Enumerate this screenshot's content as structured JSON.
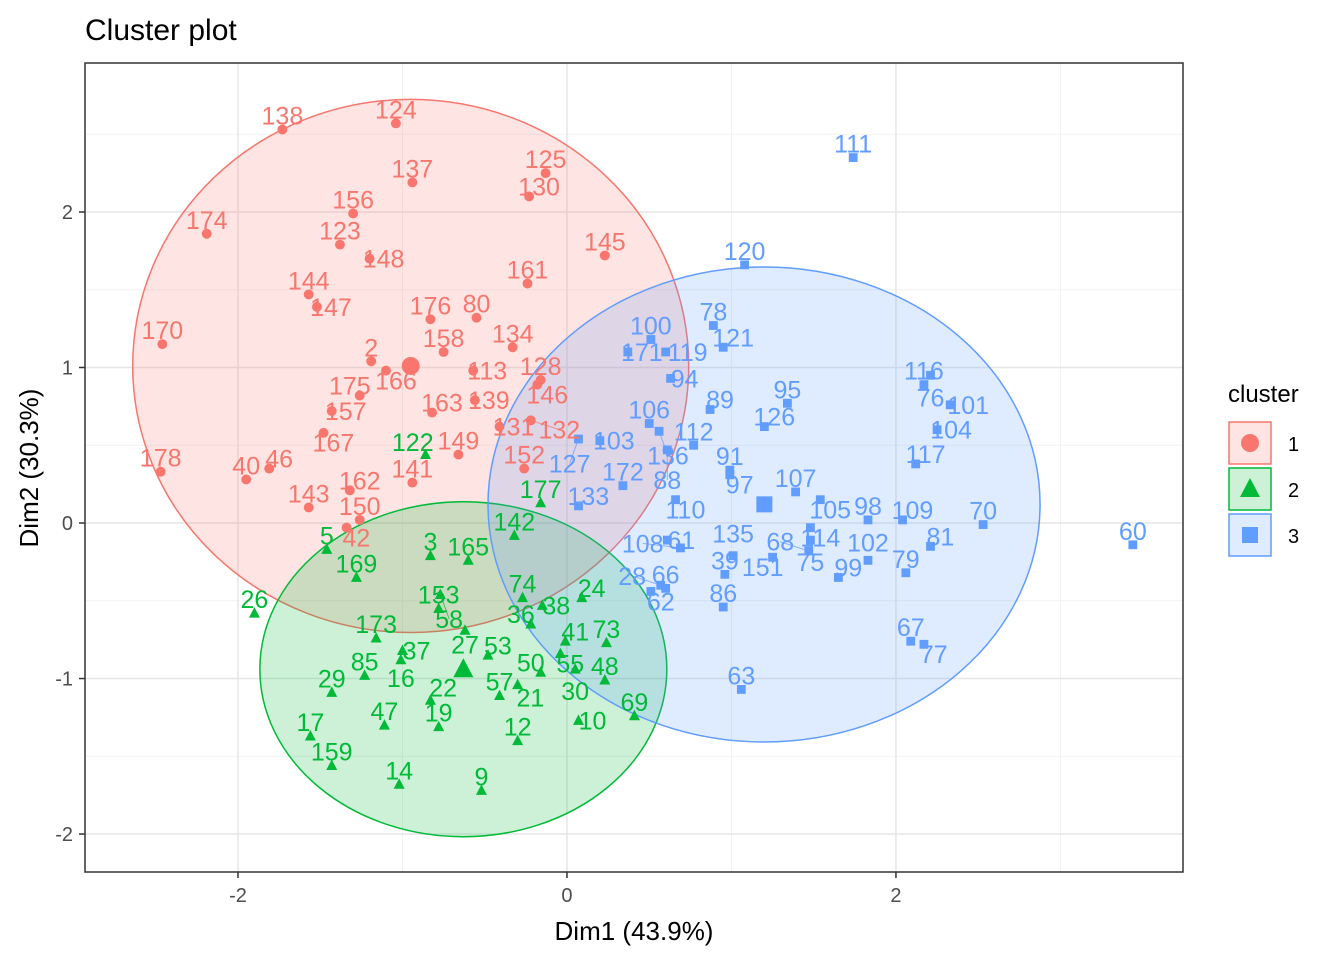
{
  "chart_data": {
    "type": "scatter",
    "title": "Cluster plot",
    "xlabel": "Dim1 (43.9%)",
    "ylabel": "Dim2 (30.3%)",
    "xlim": [
      -2.93,
      3.745
    ],
    "ylim": [
      -2.244,
      2.958
    ],
    "xticks": [
      -2,
      0,
      2
    ],
    "yticks": [
      -2,
      -1,
      0,
      1,
      2
    ],
    "grid": true,
    "legend": {
      "title": "cluster",
      "position": "right",
      "entries": [
        "1",
        "2",
        "3"
      ]
    },
    "colors": {
      "1": "#F8766D",
      "2": "#00BA38",
      "3": "#619CFF"
    },
    "ellipses": [
      {
        "cluster": "1",
        "cx": -0.95,
        "cy": 1.01,
        "rx": 1.69,
        "ry": 1.714
      },
      {
        "cluster": "2",
        "cx": -0.63,
        "cy": -0.94,
        "rx": 1.237,
        "ry": 1.077
      },
      {
        "cluster": "3",
        "cx": 1.198,
        "cy": 0.119,
        "rx": 1.678,
        "ry": 1.527
      }
    ],
    "centers": [
      {
        "cluster": "1",
        "x": -0.95,
        "y": 1.01
      },
      {
        "cluster": "2",
        "x": -0.63,
        "y": -0.94
      },
      {
        "cluster": "3",
        "x": 1.2,
        "y": 0.12
      }
    ],
    "points": [
      [
        "138",
        -1.73,
        2.53,
        "1"
      ],
      [
        "124",
        -1.04,
        2.57,
        "1"
      ],
      [
        "137",
        -0.94,
        2.19,
        "1"
      ],
      [
        "125",
        -0.13,
        2.25,
        "1"
      ],
      [
        "130",
        -0.23,
        2.1,
        "1"
      ],
      [
        "156",
        -1.3,
        1.99,
        "1"
      ],
      [
        "174",
        -2.19,
        1.86,
        "1"
      ],
      [
        "123",
        -1.38,
        1.79,
        "1"
      ],
      [
        "148",
        -1.2,
        1.7,
        "1"
      ],
      [
        "145",
        0.23,
        1.72,
        "1"
      ],
      [
        "161",
        -0.24,
        1.54,
        "1"
      ],
      [
        "144",
        -1.57,
        1.47,
        "1"
      ],
      [
        "147",
        -1.52,
        1.39,
        "1"
      ],
      [
        "176",
        -0.83,
        1.31,
        "1"
      ],
      [
        "80",
        -0.55,
        1.32,
        "1"
      ],
      [
        "170",
        -2.46,
        1.15,
        "1"
      ],
      [
        "158",
        -0.75,
        1.1,
        "1"
      ],
      [
        "134",
        -0.33,
        1.13,
        "1"
      ],
      [
        "2",
        -1.19,
        1.04,
        "1"
      ],
      [
        "166",
        -1.1,
        0.98,
        "1"
      ],
      [
        "175",
        -1.26,
        0.82,
        "1"
      ],
      [
        "113",
        -0.57,
        0.98,
        "1"
      ],
      [
        "128",
        -0.16,
        0.92,
        "1"
      ],
      [
        "146",
        -0.18,
        0.89,
        "1"
      ],
      [
        "157",
        -1.43,
        0.72,
        "1"
      ],
      [
        "163",
        -0.82,
        0.71,
        "1"
      ],
      [
        "167",
        -1.48,
        0.58,
        "1"
      ],
      [
        "139",
        -0.56,
        0.79,
        "1"
      ],
      [
        "131",
        -0.41,
        0.62,
        "1"
      ],
      [
        "132",
        -0.22,
        0.66,
        "1"
      ],
      [
        "149",
        -0.66,
        0.44,
        "1"
      ],
      [
        "152",
        -0.26,
        0.35,
        "1"
      ],
      [
        "178",
        -2.47,
        0.33,
        "1"
      ],
      [
        "40",
        -1.95,
        0.28,
        "1"
      ],
      [
        "46",
        -1.81,
        0.35,
        "1"
      ],
      [
        "141",
        -0.94,
        0.26,
        "1"
      ],
      [
        "143",
        -1.57,
        0.1,
        "1"
      ],
      [
        "162",
        -1.32,
        0.21,
        "1"
      ],
      [
        "150",
        -1.26,
        0.02,
        "1"
      ],
      [
        "42",
        -1.34,
        -0.03,
        "1"
      ],
      [
        "122",
        -0.86,
        0.44,
        "2"
      ],
      [
        "177",
        -0.16,
        0.13,
        "2"
      ],
      [
        "142",
        -0.32,
        -0.08,
        "2"
      ],
      [
        "5",
        -1.46,
        -0.17,
        "2"
      ],
      [
        "169",
        -1.28,
        -0.35,
        "2"
      ],
      [
        "3",
        -0.83,
        -0.21,
        "2"
      ],
      [
        "165",
        -0.6,
        -0.24,
        "2"
      ],
      [
        "26",
        -1.9,
        -0.58,
        "2"
      ],
      [
        "153",
        -0.78,
        -0.55,
        "2"
      ],
      [
        "58",
        -0.77,
        -0.46,
        "2"
      ],
      [
        "74",
        -0.27,
        -0.48,
        "2"
      ],
      [
        "38",
        -0.15,
        -0.53,
        "2"
      ],
      [
        "24",
        0.09,
        -0.48,
        "2"
      ],
      [
        "36",
        -0.22,
        -0.65,
        "2"
      ],
      [
        "173",
        -1.16,
        -0.74,
        "2"
      ],
      [
        "37",
        -1.0,
        -0.82,
        "2"
      ],
      [
        "27",
        -0.62,
        -0.69,
        "2"
      ],
      [
        "41",
        -0.01,
        -0.76,
        "2"
      ],
      [
        "73",
        0.24,
        -0.77,
        "2"
      ],
      [
        "85",
        -1.23,
        -0.98,
        "2"
      ],
      [
        "16",
        -1.01,
        -0.88,
        "2"
      ],
      [
        "55",
        -0.04,
        -0.84,
        "2"
      ],
      [
        "48",
        0.23,
        -1.01,
        "2"
      ],
      [
        "29",
        -1.43,
        -1.09,
        "2"
      ],
      [
        "53",
        -0.48,
        -0.85,
        "2"
      ],
      [
        "50",
        -0.16,
        -0.96,
        "2"
      ],
      [
        "30",
        0.05,
        -0.94,
        "2"
      ],
      [
        "69",
        0.41,
        -1.24,
        "2"
      ],
      [
        "47",
        -1.11,
        -1.3,
        "2"
      ],
      [
        "57",
        -0.41,
        -1.11,
        "2"
      ],
      [
        "21",
        -0.3,
        -1.04,
        "2"
      ],
      [
        "10",
        0.07,
        -1.27,
        "2"
      ],
      [
        "12",
        -0.3,
        -1.4,
        "2"
      ],
      [
        "17",
        -1.56,
        -1.37,
        "2"
      ],
      [
        "159",
        -1.43,
        -1.56,
        "2"
      ],
      [
        "14",
        -1.02,
        -1.68,
        "2"
      ],
      [
        "9",
        -0.52,
        -1.72,
        "2"
      ],
      [
        "19",
        -0.78,
        -1.31,
        "2"
      ],
      [
        "22",
        -0.83,
        -1.14,
        "2"
      ],
      [
        "111",
        1.74,
        2.35,
        "3"
      ],
      [
        "120",
        1.08,
        1.66,
        "3"
      ],
      [
        "78",
        0.89,
        1.27,
        "3"
      ],
      [
        "100",
        0.51,
        1.18,
        "3"
      ],
      [
        "171",
        0.37,
        1.1,
        "3"
      ],
      [
        "119",
        0.6,
        1.1,
        "3"
      ],
      [
        "121",
        0.95,
        1.13,
        "3"
      ],
      [
        "94",
        0.63,
        0.93,
        "3"
      ],
      [
        "116",
        2.17,
        0.89,
        "3"
      ],
      [
        "76",
        2.21,
        0.95,
        "3"
      ],
      [
        "101",
        2.33,
        0.76,
        "3"
      ],
      [
        "104",
        2.25,
        0.6,
        "3"
      ],
      [
        "95",
        1.34,
        0.77,
        "3"
      ],
      [
        "89",
        0.87,
        0.73,
        "3"
      ],
      [
        "126",
        1.2,
        0.62,
        "3"
      ],
      [
        "106",
        0.5,
        0.64,
        "3"
      ],
      [
        "112",
        0.77,
        0.5,
        "3"
      ],
      [
        "103",
        0.2,
        0.53,
        "3"
      ],
      [
        "127",
        0.07,
        0.54,
        "3"
      ],
      [
        "136",
        0.56,
        0.59,
        "3"
      ],
      [
        "88",
        0.61,
        0.47,
        "3"
      ],
      [
        "117",
        2.12,
        0.38,
        "3"
      ],
      [
        "91",
        0.99,
        0.34,
        "3"
      ],
      [
        "172",
        0.34,
        0.24,
        "3"
      ],
      [
        "107",
        1.39,
        0.2,
        "3"
      ],
      [
        "133",
        0.07,
        0.11,
        "3"
      ],
      [
        "110",
        0.66,
        0.15,
        "3"
      ],
      [
        "97",
        0.99,
        0.31,
        "3"
      ],
      [
        "105",
        1.54,
        0.15,
        "3"
      ],
      [
        "98",
        1.83,
        0.02,
        "3"
      ],
      [
        "109",
        2.04,
        0.02,
        "3"
      ],
      [
        "70",
        2.53,
        -0.01,
        "3"
      ],
      [
        "81",
        2.21,
        -0.15,
        "3"
      ],
      [
        "60",
        3.44,
        -0.14,
        "3"
      ],
      [
        "114",
        1.48,
        -0.03,
        "3"
      ],
      [
        "75",
        1.48,
        -0.11,
        "3"
      ],
      [
        "99",
        1.65,
        -0.35,
        "3"
      ],
      [
        "102",
        1.83,
        -0.24,
        "3"
      ],
      [
        "79",
        2.06,
        -0.32,
        "3"
      ],
      [
        "66",
        0.6,
        -0.42,
        "3"
      ],
      [
        "62",
        0.51,
        -0.44,
        "3"
      ],
      [
        "28",
        0.57,
        -0.4,
        "3"
      ],
      [
        "39",
        0.96,
        -0.33,
        "3"
      ],
      [
        "86",
        0.95,
        -0.54,
        "3"
      ],
      [
        "67",
        2.09,
        -0.76,
        "3"
      ],
      [
        "77",
        2.17,
        -0.78,
        "3"
      ],
      [
        "63",
        1.06,
        -1.07,
        "3"
      ],
      [
        "135",
        1.01,
        -0.21,
        "3"
      ],
      [
        "61",
        0.61,
        -0.11,
        "3"
      ],
      [
        "108",
        0.69,
        -0.16,
        "3"
      ],
      [
        "151",
        1.25,
        -0.22,
        "3"
      ],
      [
        "68",
        1.47,
        -0.18,
        "3"
      ]
    ]
  }
}
